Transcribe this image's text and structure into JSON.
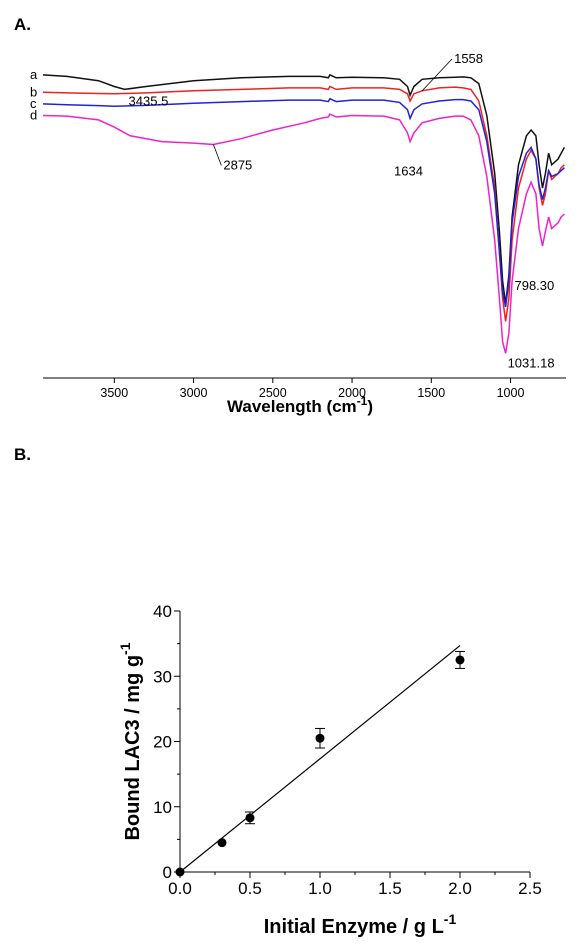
{
  "panels": {
    "a": "A.",
    "b": "B."
  },
  "chart_data": [
    {
      "type": "line",
      "panel": "A.",
      "xlabel": "Wavelength (cm",
      "xlabel_sup": "-1",
      "xlabel_suffix": ")",
      "x_reversed": true,
      "xlim": [
        3950,
        650
      ],
      "xticks": [
        3500,
        3000,
        2500,
        2000,
        1500,
        1000
      ],
      "colors": {
        "a": "#111111",
        "b": "#ee2222",
        "c": "#2222dd",
        "d": "#ee22cc"
      },
      "series": [
        {
          "name": "a",
          "x": [
            3950,
            3800,
            3600,
            3500,
            3435.5,
            3300,
            3000,
            2700,
            2400,
            2200,
            2150,
            2140,
            2100,
            2000,
            1800,
            1700,
            1650,
            1634,
            1610,
            1558,
            1450,
            1350,
            1300,
            1250,
            1200,
            1150,
            1100,
            1070,
            1050,
            1031.18,
            1010,
            990,
            950,
            900,
            870,
            840,
            820,
            798.3,
            780,
            760,
            740,
            700,
            680,
            660
          ],
          "y": [
            99,
            98.5,
            97,
            95,
            94,
            95,
            97,
            98,
            98.5,
            98.5,
            98,
            99,
            98,
            98.2,
            98,
            97.5,
            95,
            92,
            95,
            97.5,
            98,
            98.2,
            98.3,
            98,
            96,
            85,
            65,
            45,
            28,
            20,
            30,
            50,
            68,
            78,
            80,
            78,
            68,
            60,
            65,
            72,
            68,
            70,
            72,
            74
          ]
        },
        {
          "name": "b",
          "x": [
            3950,
            3800,
            3600,
            3500,
            3300,
            3000,
            2700,
            2400,
            2200,
            2150,
            2140,
            2100,
            2000,
            1800,
            1700,
            1650,
            1634,
            1610,
            1558,
            1450,
            1350,
            1300,
            1250,
            1200,
            1150,
            1100,
            1070,
            1050,
            1031.18,
            1010,
            990,
            950,
            900,
            870,
            840,
            820,
            798.3,
            780,
            760,
            740,
            700,
            680,
            660
          ],
          "y": [
            93,
            92.8,
            92.6,
            92.5,
            92.8,
            93.5,
            94,
            94.5,
            94.5,
            94,
            95,
            94,
            94.5,
            94.5,
            94,
            92.5,
            90,
            92.5,
            93.5,
            94.5,
            94.8,
            94.5,
            94,
            90,
            78,
            60,
            38,
            22,
            14,
            22,
            42,
            60,
            70,
            73,
            70,
            60,
            54,
            58,
            66,
            63,
            65,
            67,
            68
          ]
        },
        {
          "name": "c",
          "x": [
            3950,
            3800,
            3600,
            3500,
            3300,
            3000,
            2700,
            2400,
            2200,
            2150,
            2140,
            2100,
            2000,
            1800,
            1700,
            1650,
            1634,
            1610,
            1558,
            1450,
            1350,
            1300,
            1250,
            1200,
            1150,
            1100,
            1070,
            1050,
            1031.18,
            1010,
            990,
            950,
            900,
            870,
            840,
            820,
            798.3,
            780,
            760,
            740,
            700,
            680,
            660
          ],
          "y": [
            89,
            88.7,
            88.4,
            88.2,
            88.5,
            89.2,
            89.8,
            90.3,
            90.3,
            89.8,
            90.8,
            89.8,
            90.3,
            90.3,
            89.5,
            87,
            84,
            87,
            89,
            90,
            90.5,
            90.5,
            90,
            87,
            76,
            58,
            38,
            24,
            19,
            28,
            48,
            64,
            72,
            74,
            70,
            61,
            56,
            60,
            66,
            64,
            65,
            66,
            67
          ]
        },
        {
          "name": "d",
          "x": [
            3950,
            3800,
            3600,
            3500,
            3400,
            3200,
            3000,
            2875,
            2700,
            2500,
            2300,
            2200,
            2150,
            2140,
            2100,
            2000,
            1800,
            1700,
            1650,
            1634,
            1610,
            1558,
            1450,
            1350,
            1300,
            1250,
            1200,
            1150,
            1100,
            1070,
            1050,
            1031.18,
            1010,
            990,
            950,
            900,
            870,
            840,
            820,
            798.3,
            780,
            760,
            740,
            700,
            680,
            660
          ],
          "y": [
            85,
            84.8,
            83.5,
            81,
            78,
            76,
            75.5,
            75,
            77,
            80,
            82.5,
            84,
            84.5,
            85.5,
            84.5,
            85,
            84.8,
            83.5,
            79,
            76,
            79,
            82.5,
            84,
            84.8,
            84.8,
            83.5,
            78,
            64,
            42,
            22,
            7,
            3,
            10,
            28,
            46,
            58,
            62,
            58,
            46,
            40,
            45,
            50,
            46,
            48,
            50,
            51
          ]
        }
      ],
      "annotations": [
        {
          "text": "3435.5",
          "x": 3435.5,
          "series": "a"
        },
        {
          "text": "1558",
          "x": 1558,
          "series": "b"
        },
        {
          "text": "2875",
          "x": 2875,
          "series": "d"
        },
        {
          "text": "1634",
          "x": 1634,
          "series": "d"
        },
        {
          "text": "798.30",
          "x": 798.3,
          "series": "d"
        },
        {
          "text": "1031.18",
          "x": 1031.18,
          "series": "d"
        }
      ]
    },
    {
      "type": "scatter",
      "panel": "B.",
      "xlabel": "Initial Enzyme /  g L",
      "xlabel_sup": "-1",
      "ylabel": "Bound LAC3 / mg g",
      "ylabel_sup": "-1",
      "xlim": [
        0,
        2.5
      ],
      "ylim": [
        0,
        40
      ],
      "xticks": [
        "0.0",
        "0.5",
        "1.0",
        "1.5",
        "2.0",
        "2.5"
      ],
      "yticks": [
        "0",
        "10",
        "20",
        "30",
        "40"
      ],
      "points": [
        {
          "x": 0.0,
          "y": 0.0,
          "err": 0
        },
        {
          "x": 0.3,
          "y": 4.5,
          "err": 0
        },
        {
          "x": 0.5,
          "y": 8.3,
          "err": 0.9
        },
        {
          "x": 1.0,
          "y": 20.5,
          "err": 1.5
        },
        {
          "x": 2.0,
          "y": 32.5,
          "err": 1.3
        }
      ],
      "fit_line": {
        "x": [
          0.0,
          2.0
        ],
        "y": [
          0.0,
          34.7
        ]
      }
    }
  ]
}
